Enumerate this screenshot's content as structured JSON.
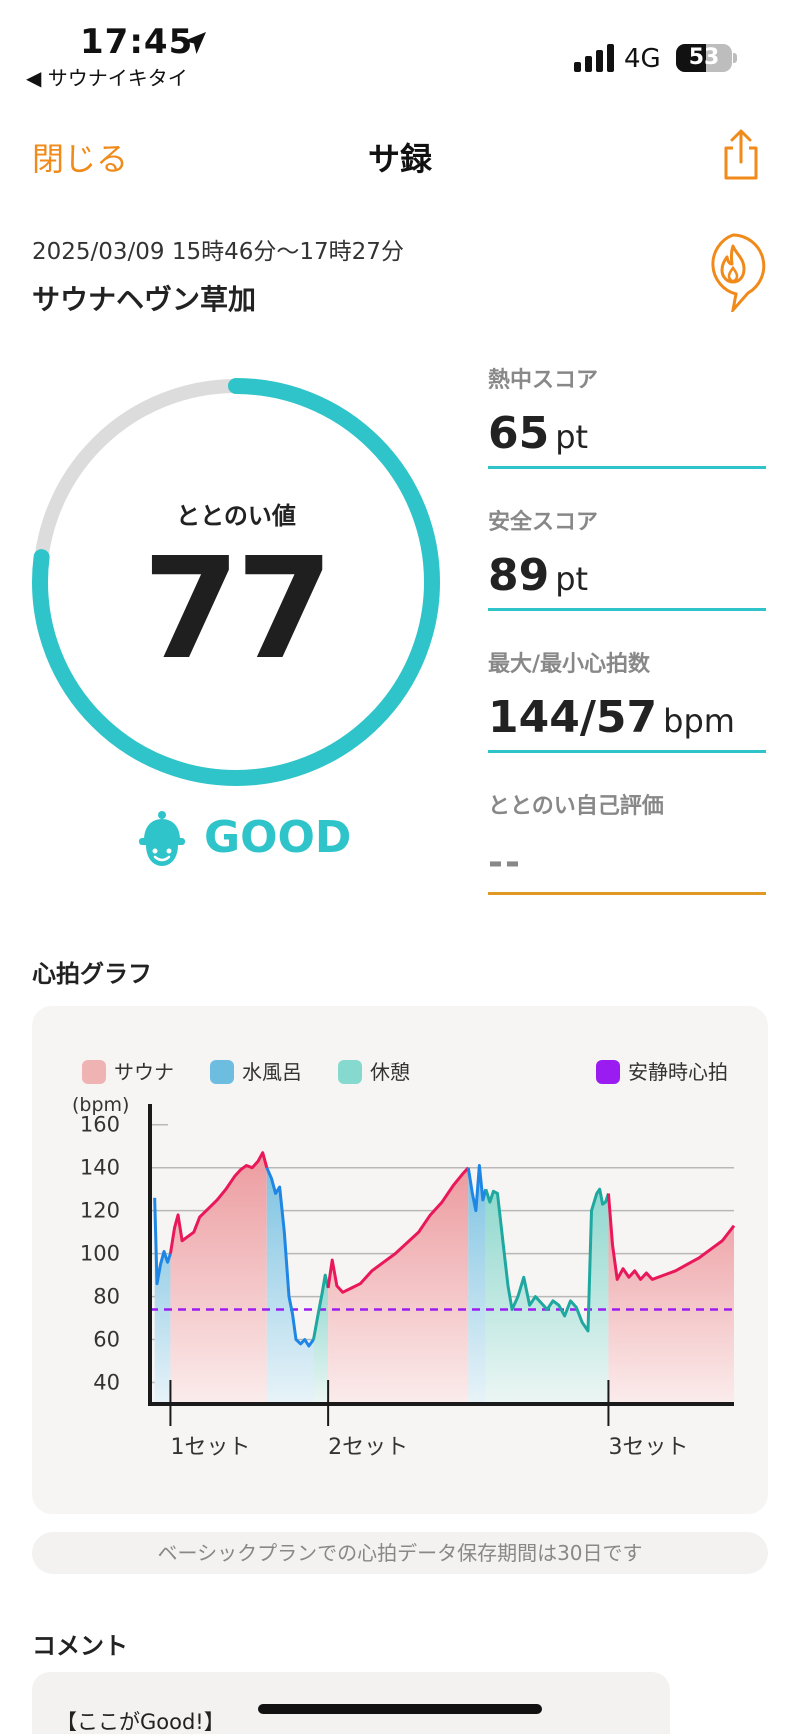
{
  "status_bar": {
    "time": "17:45",
    "back_app": "◀ サウナイキタイ",
    "network": "4G",
    "battery": "53"
  },
  "nav": {
    "close_label": "閉じる",
    "title": "サ録"
  },
  "session": {
    "datetime": "2025/03/09 15時46分〜17時27分",
    "facility": "サウナヘヴン草加"
  },
  "totonoi": {
    "label": "ととのい値",
    "value": "77",
    "progress_fraction": 0.77,
    "rating": "GOOD"
  },
  "scores": [
    {
      "label": "熱中スコア",
      "value": "65",
      "unit": "pt"
    },
    {
      "label": "安全スコア",
      "value": "89",
      "unit": "pt"
    },
    {
      "label": "最大/最小心拍数",
      "value": "144/57",
      "unit": "bpm"
    },
    {
      "label": "ととのい自己評価",
      "value": "--",
      "unit": ""
    }
  ],
  "chart_section_title": "心拍グラフ",
  "colors": {
    "sauna": "#f0b3b3",
    "cold_bath": "#6cbde0",
    "rest": "#86d9cf",
    "resting_hr": "#9b1cf0",
    "sauna_line": "#e8185a",
    "cold_line": "#1f86e6",
    "rest_line": "#1ea8a0",
    "accent": "#f08a1a",
    "teal": "#2ec4c9"
  },
  "chart_data": {
    "type": "area",
    "ylabel": "(bpm)",
    "ylim": [
      30,
      165
    ],
    "yticks": [
      40,
      60,
      80,
      100,
      120,
      140,
      160
    ],
    "legend": [
      {
        "name": "サウナ",
        "color": "#f0b3b3"
      },
      {
        "name": "水風呂",
        "color": "#6cbde0"
      },
      {
        "name": "休憩",
        "color": "#86d9cf"
      },
      {
        "name": "安静時心拍",
        "color": "#9b1cf0"
      }
    ],
    "resting_hr": 74,
    "x_range": [
      0,
      100
    ],
    "set_markers": [
      {
        "label": "1セット",
        "x": 3.5
      },
      {
        "label": "2セット",
        "x": 30.5
      },
      {
        "label": "3セット",
        "x": 78.5
      }
    ],
    "phases": [
      {
        "type": "rest",
        "x0": 0,
        "x1": 3.5
      },
      {
        "type": "sauna",
        "x0": 3.5,
        "x1": 20
      },
      {
        "type": "cold",
        "x0": 20,
        "x1": 28
      },
      {
        "type": "rest",
        "x0": 28,
        "x1": 30.5
      },
      {
        "type": "sauna",
        "x0": 30.5,
        "x1": 54.5
      },
      {
        "type": "cold",
        "x0": 54.5,
        "x1": 57.5
      },
      {
        "type": "rest",
        "x0": 57.5,
        "x1": 58.5
      },
      {
        "type": "rest",
        "x0": 58.5,
        "x1": 78.5
      },
      {
        "type": "sauna",
        "x0": 78.5,
        "x1": 100
      }
    ],
    "series": [
      {
        "type": "cold",
        "points": [
          [
            0.8,
            126
          ],
          [
            1.2,
            86
          ],
          [
            1.8,
            95
          ],
          [
            2.4,
            101
          ],
          [
            3.0,
            96
          ],
          [
            3.5,
            100
          ]
        ]
      },
      {
        "type": "sauna",
        "points": [
          [
            3.5,
            100
          ],
          [
            4.2,
            112
          ],
          [
            4.8,
            118
          ],
          [
            5.5,
            106
          ],
          [
            6.5,
            108
          ],
          [
            7.5,
            110
          ],
          [
            8.5,
            117
          ],
          [
            10,
            121
          ],
          [
            11.5,
            125
          ],
          [
            13,
            130
          ],
          [
            14.5,
            136
          ],
          [
            15.5,
            139
          ],
          [
            16.5,
            141
          ],
          [
            17.5,
            140
          ],
          [
            18.5,
            143
          ],
          [
            19.3,
            147
          ],
          [
            20,
            140
          ]
        ]
      },
      {
        "type": "cold",
        "points": [
          [
            20,
            140
          ],
          [
            20.8,
            135
          ],
          [
            21.5,
            128
          ],
          [
            22.2,
            131
          ],
          [
            23,
            110
          ],
          [
            23.8,
            80
          ],
          [
            24.4,
            72
          ],
          [
            25,
            60
          ],
          [
            25.8,
            58
          ],
          [
            26.5,
            60
          ],
          [
            27.2,
            57
          ],
          [
            28,
            60
          ]
        ]
      },
      {
        "type": "rest",
        "points": [
          [
            28,
            60
          ],
          [
            28.8,
            72
          ],
          [
            29.5,
            82
          ],
          [
            30,
            90
          ],
          [
            30.5,
            84
          ]
        ]
      },
      {
        "type": "sauna",
        "points": [
          [
            30.5,
            84
          ],
          [
            31.2,
            97
          ],
          [
            32,
            85
          ],
          [
            33,
            82
          ],
          [
            34.5,
            84
          ],
          [
            36,
            86
          ],
          [
            38,
            92
          ],
          [
            40,
            96
          ],
          [
            42,
            100
          ],
          [
            44,
            105
          ],
          [
            46,
            110
          ],
          [
            48,
            118
          ],
          [
            50,
            124
          ],
          [
            52,
            132
          ],
          [
            53.5,
            137
          ],
          [
            54.5,
            140
          ]
        ]
      },
      {
        "type": "cold",
        "points": [
          [
            54.5,
            140
          ],
          [
            55.2,
            128
          ],
          [
            55.8,
            120
          ],
          [
            56.4,
            141
          ],
          [
            57,
            125
          ],
          [
            57.5,
            130
          ]
        ]
      },
      {
        "type": "rest",
        "points": [
          [
            57.5,
            130
          ],
          [
            58.2,
            124
          ],
          [
            58.8,
            129
          ],
          [
            59.5,
            128
          ],
          [
            60.5,
            104
          ],
          [
            61.3,
            85
          ],
          [
            62,
            74
          ],
          [
            63,
            80
          ],
          [
            64,
            89
          ],
          [
            65,
            76
          ],
          [
            66,
            80
          ],
          [
            67,
            77
          ],
          [
            68,
            74
          ],
          [
            69,
            78
          ],
          [
            70,
            76
          ],
          [
            71,
            71
          ],
          [
            72,
            78
          ],
          [
            73,
            75
          ],
          [
            74,
            68
          ],
          [
            75,
            64
          ],
          [
            75.6,
            120
          ],
          [
            76.5,
            128
          ],
          [
            77,
            130
          ],
          [
            77.5,
            123
          ],
          [
            78,
            124
          ],
          [
            78.5,
            128
          ]
        ]
      },
      {
        "type": "sauna",
        "points": [
          [
            78.5,
            128
          ],
          [
            79.2,
            104
          ],
          [
            80,
            88
          ],
          [
            81,
            93
          ],
          [
            82,
            89
          ],
          [
            83,
            92
          ],
          [
            84,
            88
          ],
          [
            85,
            91
          ],
          [
            86,
            88
          ],
          [
            88,
            90
          ],
          [
            90,
            92
          ],
          [
            92,
            95
          ],
          [
            94,
            98
          ],
          [
            96,
            102
          ],
          [
            98,
            106
          ],
          [
            100,
            113
          ]
        ]
      }
    ]
  },
  "storage_note": "ベーシックプランでの心拍データ保存期間は30日です",
  "comment": {
    "title": "コメント",
    "first_line": "【ここがGood!】"
  }
}
